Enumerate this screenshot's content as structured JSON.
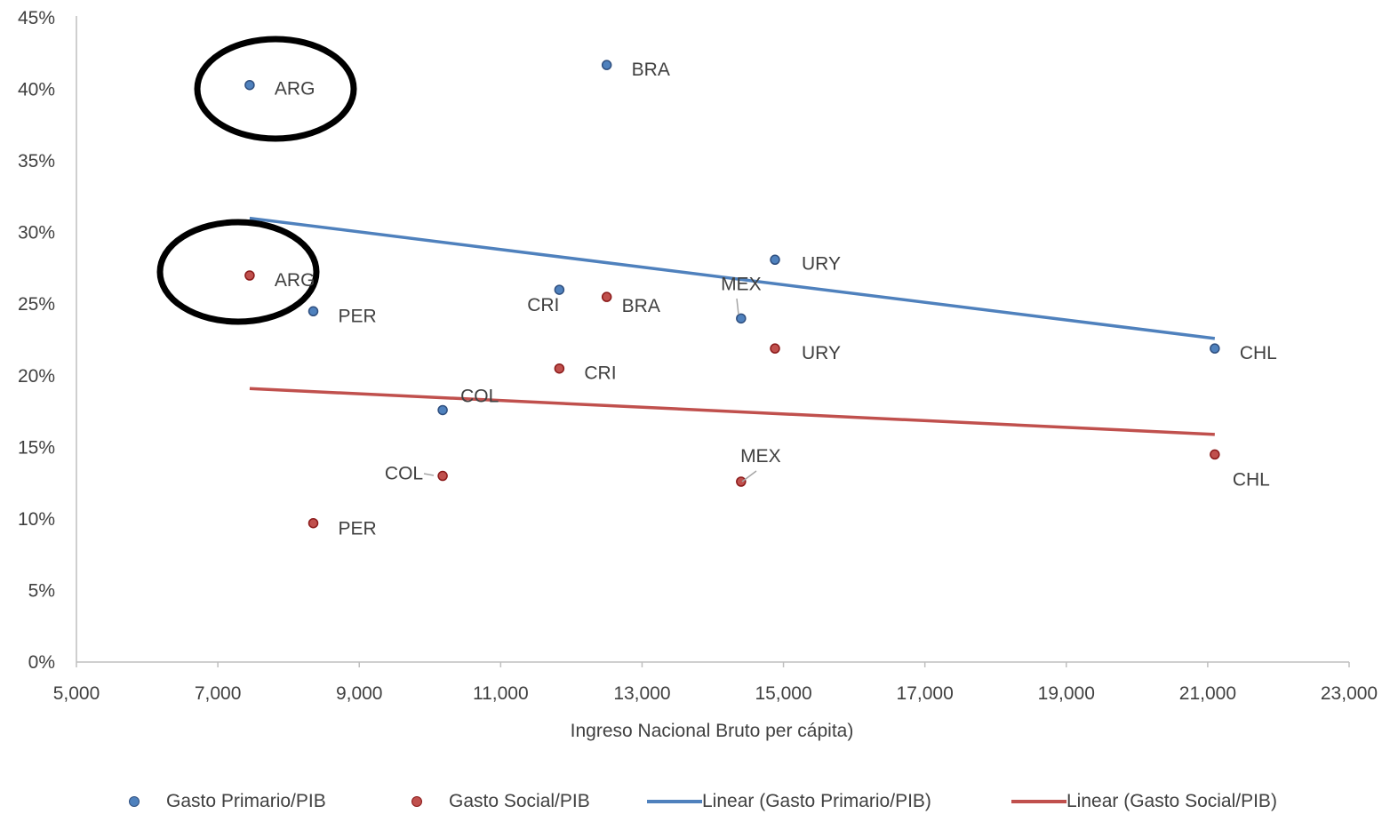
{
  "chart_data": {
    "type": "scatter",
    "title": "",
    "xlabel": "Ingreso Nacional  Bruto  per cápita)",
    "ylabel": "",
    "xlim": [
      5000,
      23000
    ],
    "ylim": [
      0,
      0.45
    ],
    "x_ticks": [
      5000,
      7000,
      9000,
      11000,
      13000,
      15000,
      17000,
      19000,
      21000,
      23000
    ],
    "x_tick_labels": [
      "5,000",
      "7,000",
      "9,000",
      "11,000",
      "13,000",
      "15,000",
      "17,000",
      "19,000",
      "21,000",
      "23,000"
    ],
    "y_ticks": [
      0,
      0.05,
      0.1,
      0.15,
      0.2,
      0.25,
      0.3,
      0.35,
      0.4,
      0.45
    ],
    "y_tick_labels": [
      "0%",
      "5%",
      "10%",
      "15%",
      "20%",
      "25%",
      "30%",
      "35%",
      "40%",
      "45%"
    ],
    "grid": false,
    "legend_position": "bottom",
    "series": [
      {
        "name": "Gasto Primario/PIB",
        "color": "#4F81BD",
        "points": [
          {
            "label": "ARG",
            "x": 7450,
            "y": 0.403
          },
          {
            "label": "BRA",
            "x": 12500,
            "y": 0.417
          },
          {
            "label": "URY",
            "x": 14880,
            "y": 0.281
          },
          {
            "label": "CRI",
            "x": 11830,
            "y": 0.26
          },
          {
            "label": "PER",
            "x": 8350,
            "y": 0.245
          },
          {
            "label": "MEX",
            "x": 14400,
            "y": 0.24
          },
          {
            "label": "CHL",
            "x": 21100,
            "y": 0.219
          },
          {
            "label": "COL",
            "x": 10180,
            "y": 0.176
          }
        ]
      },
      {
        "name": "Gasto Social/PIB",
        "color": "#C0504D",
        "points": [
          {
            "label": "ARG",
            "x": 7450,
            "y": 0.27
          },
          {
            "label": "BRA",
            "x": 12500,
            "y": 0.255
          },
          {
            "label": "URY",
            "x": 14880,
            "y": 0.219
          },
          {
            "label": "CRI",
            "x": 11830,
            "y": 0.205
          },
          {
            "label": "CHL",
            "x": 21100,
            "y": 0.145
          },
          {
            "label": "COL",
            "x": 10180,
            "y": 0.13
          },
          {
            "label": "MEX",
            "x": 14400,
            "y": 0.126
          },
          {
            "label": "PER",
            "x": 8350,
            "y": 0.097
          }
        ]
      }
    ],
    "trendlines": [
      {
        "name": "Linear  (Gasto Primario/PIB)",
        "color": "#4F81BD",
        "x": [
          7450,
          21100
        ],
        "y": [
          0.31,
          0.226
        ]
      },
      {
        "name": "Linear  (Gasto Social/PIB)",
        "color": "#C0504D",
        "x": [
          7450,
          21100
        ],
        "y": [
          0.191,
          0.159
        ]
      }
    ],
    "annotations": [
      {
        "type": "circle",
        "around": "Gasto Primario/PIB ARG"
      },
      {
        "type": "circle",
        "around": "Gasto Social/PIB ARG"
      }
    ]
  }
}
